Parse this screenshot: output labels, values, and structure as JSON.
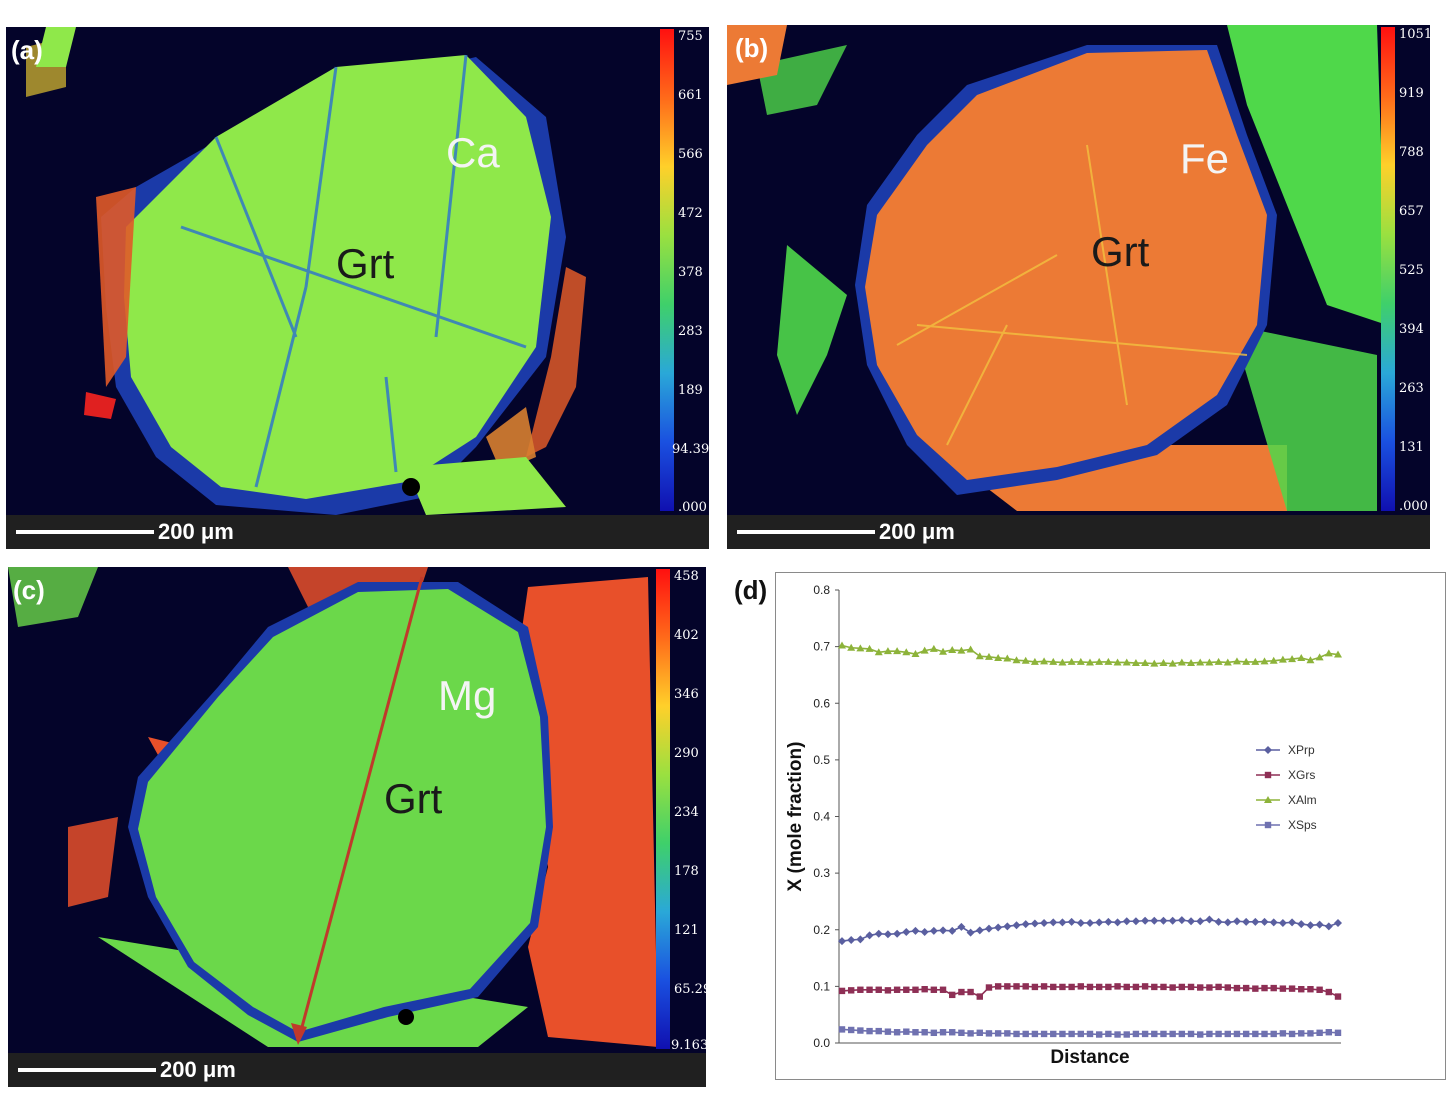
{
  "panels": [
    {
      "letter": "(a)",
      "element": "Ca",
      "mineral": "Grt",
      "scale": "200 μm",
      "ticks": [
        "755",
        "661",
        "566",
        "472",
        "378",
        "283",
        "189",
        "94.39",
        ".000"
      ],
      "colors": {
        "grain": "#8fe84a",
        "rim": "#e05a28",
        "matrix": "#04042a"
      }
    },
    {
      "letter": "(b)",
      "element": "Fe",
      "mineral": "Grt",
      "scale": "200 μm",
      "ticks": [
        "1051",
        "919",
        "788",
        "657",
        "525",
        "394",
        "263",
        "131",
        ".000"
      ],
      "colors": {
        "grain": "#ec7a35",
        "rim": "#4fd84a",
        "matrix": "#04042a"
      }
    },
    {
      "letter": "(c)",
      "element": "Mg",
      "mineral": "Grt",
      "scale": "200 μm",
      "ticks": [
        "458",
        "402",
        "346",
        "290",
        "234",
        "178",
        "121",
        "65.29",
        "9.163"
      ],
      "colors": {
        "grain": "#6bd84a",
        "rim": "#e8502a",
        "matrix": "#04042a",
        "profile_arrow": "#c0392b"
      }
    }
  ],
  "chart_panel_letter": "(d)",
  "chart_data": {
    "type": "line",
    "xlabel": "Distance",
    "ylabel": "X (mole fraction)",
    "ylim": [
      0,
      0.8
    ],
    "yticks": [
      "0.0",
      "0.1",
      "0.2",
      "0.3",
      "0.4",
      "0.5",
      "0.6",
      "0.7",
      "0.8"
    ],
    "legend_position": "right-middle",
    "series": [
      {
        "name": "XPrp",
        "color": "#5a5fa0",
        "marker": "diamond",
        "values": [
          0.18,
          0.182,
          0.183,
          0.19,
          0.193,
          0.192,
          0.193,
          0.196,
          0.198,
          0.196,
          0.198,
          0.199,
          0.198,
          0.205,
          0.195,
          0.199,
          0.202,
          0.204,
          0.206,
          0.208,
          0.21,
          0.211,
          0.212,
          0.213,
          0.213,
          0.214,
          0.212,
          0.212,
          0.213,
          0.214,
          0.213,
          0.215,
          0.215,
          0.216,
          0.216,
          0.216,
          0.216,
          0.217,
          0.215,
          0.215,
          0.218,
          0.214,
          0.213,
          0.215,
          0.214,
          0.214,
          0.214,
          0.213,
          0.212,
          0.213,
          0.21,
          0.208,
          0.209,
          0.206,
          0.212
        ]
      },
      {
        "name": "XGrs",
        "color": "#8e2f55",
        "marker": "square",
        "values": [
          0.092,
          0.093,
          0.094,
          0.094,
          0.094,
          0.093,
          0.094,
          0.094,
          0.094,
          0.095,
          0.094,
          0.094,
          0.085,
          0.09,
          0.09,
          0.082,
          0.098,
          0.1,
          0.1,
          0.1,
          0.1,
          0.099,
          0.1,
          0.099,
          0.099,
          0.099,
          0.1,
          0.099,
          0.099,
          0.099,
          0.1,
          0.099,
          0.099,
          0.1,
          0.099,
          0.099,
          0.098,
          0.099,
          0.099,
          0.098,
          0.098,
          0.099,
          0.098,
          0.097,
          0.097,
          0.096,
          0.097,
          0.097,
          0.096,
          0.096,
          0.095,
          0.095,
          0.094,
          0.09,
          0.082
        ]
      },
      {
        "name": "XAlm",
        "color": "#8db33a",
        "marker": "triangle",
        "values": [
          0.702,
          0.698,
          0.697,
          0.696,
          0.69,
          0.692,
          0.692,
          0.69,
          0.687,
          0.693,
          0.696,
          0.691,
          0.694,
          0.693,
          0.695,
          0.683,
          0.682,
          0.68,
          0.679,
          0.676,
          0.675,
          0.673,
          0.674,
          0.673,
          0.672,
          0.673,
          0.673,
          0.672,
          0.673,
          0.673,
          0.672,
          0.672,
          0.671,
          0.671,
          0.67,
          0.671,
          0.67,
          0.672,
          0.671,
          0.672,
          0.672,
          0.673,
          0.672,
          0.674,
          0.673,
          0.673,
          0.674,
          0.675,
          0.677,
          0.678,
          0.68,
          0.676,
          0.681,
          0.688,
          0.686
        ]
      },
      {
        "name": "XSps",
        "color": "#6f71b0",
        "marker": "square",
        "values": [
          0.024,
          0.023,
          0.022,
          0.021,
          0.021,
          0.02,
          0.019,
          0.02,
          0.019,
          0.019,
          0.018,
          0.019,
          0.019,
          0.018,
          0.017,
          0.018,
          0.017,
          0.017,
          0.017,
          0.016,
          0.016,
          0.016,
          0.016,
          0.016,
          0.016,
          0.016,
          0.016,
          0.016,
          0.015,
          0.016,
          0.015,
          0.015,
          0.016,
          0.016,
          0.016,
          0.016,
          0.016,
          0.016,
          0.016,
          0.015,
          0.016,
          0.016,
          0.016,
          0.016,
          0.016,
          0.016,
          0.016,
          0.016,
          0.017,
          0.016,
          0.017,
          0.017,
          0.018,
          0.019,
          0.018
        ]
      }
    ]
  }
}
